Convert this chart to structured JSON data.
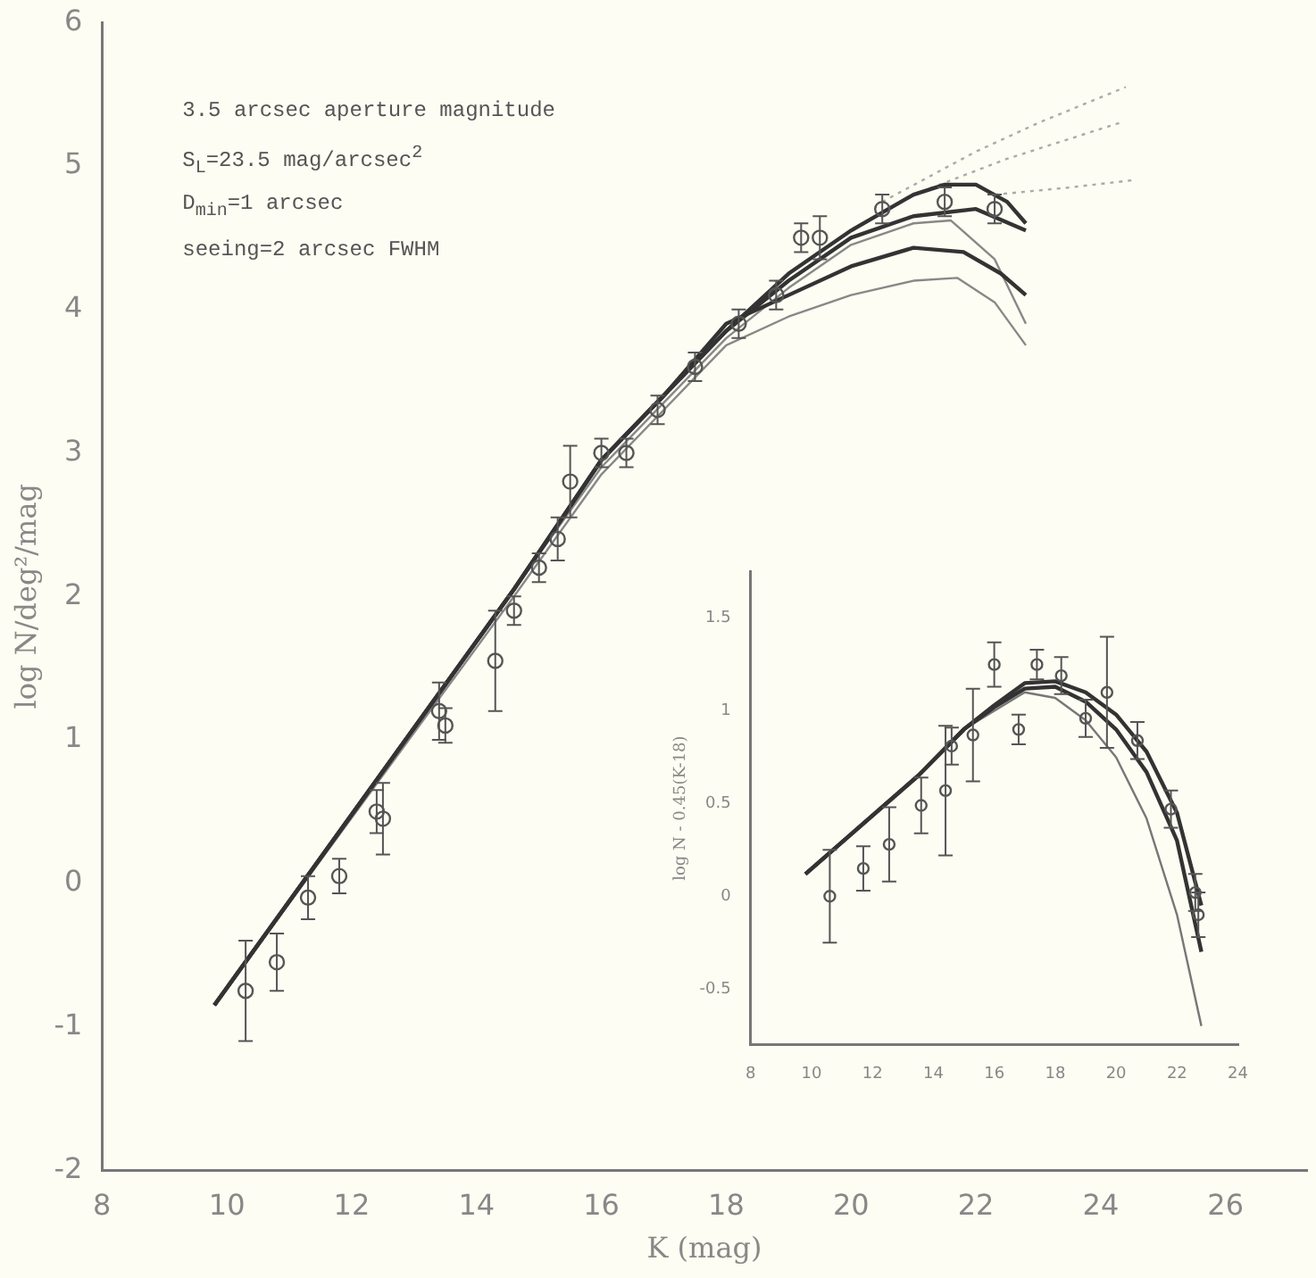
{
  "chart_data": [
    {
      "type": "line",
      "xlabel": "K (mag)",
      "ylabel": "log N/deg²/mag",
      "xlim": [
        8,
        27.3
      ],
      "ylim": [
        -2,
        6
      ],
      "xticks": [
        8,
        10,
        12,
        14,
        16,
        18,
        20,
        22,
        24,
        26
      ],
      "yticks": [
        -2,
        -1,
        0,
        1,
        2,
        3,
        4,
        5,
        6
      ],
      "grid": false,
      "legend": false,
      "annotations": [
        "3.5 arcsec aperture magnitude",
        "S$_{L}$=23.5 mag/arcsec$^{2}$",
        "D$_{min}$=1 arcsec",
        "seeing=2 arcsec FWHM"
      ],
      "series": [
        {
          "type": "scatter",
          "color": "#555555",
          "marker": "circle",
          "x": [
            10.3,
            10.8,
            11.3,
            11.8,
            12.4,
            12.5,
            13.4,
            13.5,
            14.3,
            14.6,
            15.0,
            15.3,
            15.5,
            16.0,
            16.4,
            16.9,
            17.5,
            18.2,
            18.8,
            19.2,
            19.5,
            20.5,
            21.5,
            22.3
          ],
          "values": [
            -0.75,
            -0.55,
            -0.1,
            0.05,
            0.5,
            0.45,
            1.2,
            1.1,
            1.55,
            1.9,
            2.2,
            2.4,
            2.8,
            3.0,
            3.0,
            3.3,
            3.6,
            3.9,
            4.1,
            4.5,
            4.5,
            4.7,
            4.75,
            4.7
          ],
          "errors": [
            0.35,
            0.2,
            0.15,
            0.12,
            0.15,
            0.25,
            0.2,
            0.12,
            0.35,
            0.1,
            0.1,
            0.15,
            0.25,
            0.1,
            0.1,
            0.1,
            0.1,
            0.1,
            0.1,
            0.1,
            0.15,
            0.1,
            0.1,
            0.1
          ]
        },
        {
          "type": "line",
          "color": "#333333",
          "line_style": "solid",
          "x": [
            9.8,
            14.6,
            16,
            17,
            18,
            19,
            20,
            21,
            21.5,
            22,
            22.5,
            22.8
          ],
          "values": [
            -0.85,
            2.05,
            2.95,
            3.4,
            3.85,
            4.25,
            4.55,
            4.8,
            4.87,
            4.87,
            4.75,
            4.6
          ]
        },
        {
          "type": "line",
          "color": "#333333",
          "line_style": "solid",
          "x": [
            9.8,
            14.6,
            16,
            17,
            18,
            19,
            20,
            21,
            22,
            22.8
          ],
          "values": [
            -0.85,
            2.05,
            2.95,
            3.4,
            3.85,
            4.2,
            4.5,
            4.65,
            4.7,
            4.55
          ]
        },
        {
          "type": "line",
          "color": "#333333",
          "line_style": "solid",
          "x": [
            9.8,
            14.6,
            16,
            17,
            18,
            19,
            20,
            21,
            21.8,
            22.4,
            22.8
          ],
          "values": [
            -0.85,
            2.05,
            2.95,
            3.4,
            3.9,
            4.1,
            4.3,
            4.43,
            4.4,
            4.25,
            4.1
          ]
        },
        {
          "type": "line",
          "color": "#888888",
          "line_style": "solid",
          "x": [
            9.8,
            14.6,
            16,
            17,
            18,
            19,
            20,
            21,
            21.6,
            22.3,
            22.8
          ],
          "values": [
            -0.85,
            2.05,
            2.9,
            3.35,
            3.8,
            4.15,
            4.45,
            4.6,
            4.62,
            4.35,
            3.9
          ]
        },
        {
          "type": "line",
          "color": "#888888",
          "line_style": "solid",
          "x": [
            9.8,
            14.6,
            16,
            17,
            18,
            19,
            20,
            21,
            21.7,
            22.3,
            22.8
          ],
          "values": [
            -0.85,
            2.0,
            2.85,
            3.3,
            3.75,
            3.95,
            4.1,
            4.2,
            4.22,
            4.05,
            3.75
          ]
        },
        {
          "type": "line",
          "color": "#aaaaaa",
          "line_style": "dotted",
          "x": [
            20.5,
            22,
            23,
            24.4
          ],
          "values": [
            4.75,
            5.1,
            5.3,
            5.55
          ]
        },
        {
          "type": "line",
          "color": "#aaaaaa",
          "line_style": "dotted",
          "x": [
            21,
            22.5,
            24.3
          ],
          "values": [
            4.8,
            5.05,
            5.3
          ]
        },
        {
          "type": "line",
          "color": "#aaaaaa",
          "line_style": "dotted",
          "x": [
            22.3,
            23.5,
            24.5
          ],
          "values": [
            4.8,
            4.85,
            4.9
          ]
        }
      ]
    },
    {
      "type": "line",
      "ylabel": "log N - 0.45(K-18)",
      "xlim": [
        8,
        24
      ],
      "ylim": [
        -0.8,
        1.75
      ],
      "xticks": [
        8,
        10,
        12,
        14,
        16,
        18,
        20,
        22,
        24
      ],
      "yticks": [
        -0.5,
        0,
        0.5,
        1,
        1.5
      ],
      "grid": false,
      "legend": false,
      "series": [
        {
          "type": "scatter",
          "color": "#555555",
          "marker": "circle",
          "x": [
            10.6,
            11.7,
            12.55,
            13.6,
            14.4,
            14.6,
            15.3,
            16.0,
            16.8,
            17.4,
            18.2,
            19.0,
            19.7,
            20.7,
            21.8,
            22.6,
            22.7
          ],
          "values": [
            0,
            0.15,
            0.28,
            0.49,
            0.57,
            0.81,
            0.87,
            1.25,
            0.9,
            1.25,
            1.19,
            0.96,
            1.1,
            0.84,
            0.47,
            0.02,
            -0.1
          ],
          "errors": [
            0.25,
            0.12,
            0.2,
            0.15,
            0.35,
            0.1,
            0.25,
            0.12,
            0.08,
            0.08,
            0.1,
            0.1,
            0.3,
            0.1,
            0.1,
            0.1,
            0.12
          ]
        },
        {
          "type": "line",
          "color": "#333333",
          "line_style": "solid",
          "x": [
            9.8,
            13.5,
            15,
            16,
            17,
            18,
            19,
            20,
            21,
            22,
            22.8
          ],
          "values": [
            0.12,
            0.65,
            0.9,
            1.03,
            1.15,
            1.16,
            1.1,
            0.98,
            0.78,
            0.45,
            -0.05
          ]
        },
        {
          "type": "line",
          "color": "#333333",
          "line_style": "solid",
          "x": [
            9.8,
            13.5,
            15,
            16,
            17,
            18,
            19,
            20,
            21,
            22,
            22.8
          ],
          "values": [
            0.12,
            0.65,
            0.9,
            1.02,
            1.12,
            1.13,
            1.05,
            0.9,
            0.67,
            0.3,
            -0.3
          ]
        },
        {
          "type": "line",
          "color": "#777777",
          "line_style": "solid",
          "x": [
            9.8,
            13.5,
            15,
            16,
            17,
            18,
            19,
            20,
            21,
            22,
            22.8
          ],
          "values": [
            0.12,
            0.65,
            0.9,
            1.0,
            1.1,
            1.07,
            0.95,
            0.75,
            0.42,
            -0.1,
            -0.7
          ]
        }
      ]
    }
  ]
}
